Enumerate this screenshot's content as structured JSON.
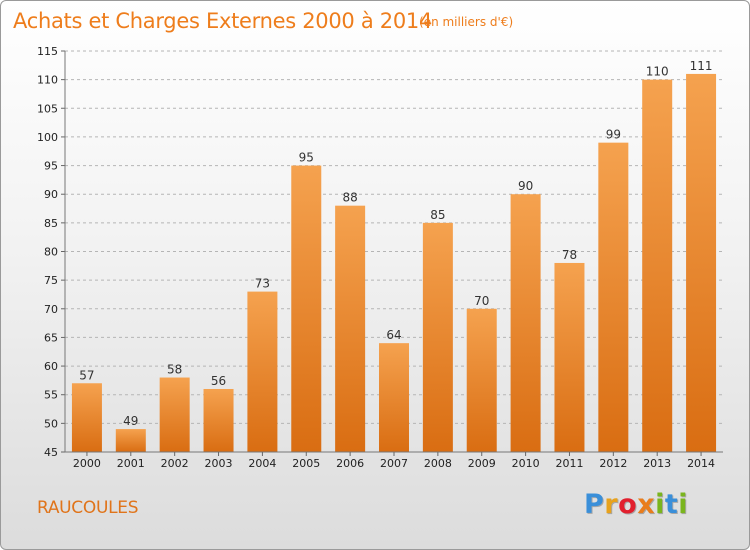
{
  "header": {
    "title": "Achats et Charges Externes 2000 à 2014",
    "unit": "(en milliers d'€)"
  },
  "footer": {
    "commune": "RAUCOULES",
    "logo_letters": [
      "P",
      "r",
      "o",
      "x",
      "i",
      "t",
      "i"
    ],
    "logo_colors": [
      "#3a8fd9",
      "#e8a21c",
      "#e2202e",
      "#e97d1c",
      "#7ab51d",
      "#3a8fd9",
      "#7ab51d"
    ]
  },
  "chart_data": {
    "type": "bar",
    "title": "Achats et Charges Externes 2000 à 2014",
    "subtitle": "(en milliers d'€)",
    "xlabel": "",
    "ylabel": "",
    "categories": [
      "2000",
      "2001",
      "2002",
      "2003",
      "2004",
      "2005",
      "2006",
      "2007",
      "2008",
      "2009",
      "2010",
      "2011",
      "2012",
      "2013",
      "2014"
    ],
    "values": [
      57,
      49,
      58,
      56,
      73,
      95,
      88,
      64,
      85,
      70,
      90,
      78,
      99,
      110,
      111
    ],
    "ylim": [
      45,
      115
    ],
    "yticks": [
      45,
      50,
      55,
      60,
      65,
      70,
      75,
      80,
      85,
      90,
      95,
      100,
      105,
      110,
      115
    ],
    "grid": true,
    "bar_color_top": "#f5a24f",
    "bar_color_bottom": "#d96d12",
    "grid_color": "#b5b5b5"
  }
}
